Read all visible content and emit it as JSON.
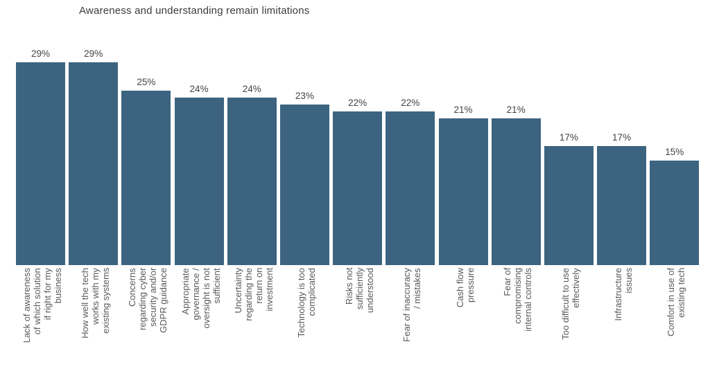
{
  "chart": {
    "title": "Awareness and understanding remain limitations"
  },
  "chart_data": {
    "type": "bar",
    "title": "Awareness and understanding remain limitations",
    "xlabel": "",
    "ylabel": "",
    "value_suffix": "%",
    "grid": false,
    "axes_visible": false,
    "legend": null,
    "bar_color": "#3c6480",
    "title_color": "#3b3b3f",
    "value_label_color": "#424242",
    "category_label_color": "#595959",
    "ylim": [
      0,
      38
    ],
    "categories": [
      "Lack of awareness of which solution if right for my business",
      "How well the tech works with my existing systems",
      "Concerns regarding cyber security and/or GDPR guidance",
      "Appropriate governance / oversight is not sufficient",
      "Uncertainty regarding the return on investment",
      "Technology is too complicated",
      "Risks not sufficiently understood",
      "Fear of inaccuracy / mistakes",
      "Cash flow pressure",
      "Fear of compromising internal controls",
      "Too difficult to use effectively",
      "Infrastructure issues",
      "Comfort in use of existing tech"
    ],
    "category_lines": [
      [
        "Lack of awareness",
        "of which solution",
        "if right for my",
        "business"
      ],
      [
        "How well the tech",
        "works with my",
        "existing systems"
      ],
      [
        "Concerns",
        "regarding cyber",
        "security and/or",
        "GDPR guidance"
      ],
      [
        "Appropriate",
        "governance /",
        "oversight is not",
        "sufficient"
      ],
      [
        "Uncertainty",
        "regarding the",
        "return on",
        "investment"
      ],
      [
        "Technology is too",
        "complicated"
      ],
      [
        "Risks not",
        "sufficiently",
        "understood"
      ],
      [
        "Fear of inaccuracy",
        "/ mistakes"
      ],
      [
        "Cash flow",
        "pressure"
      ],
      [
        "Fear of",
        "compromising",
        "internal controls"
      ],
      [
        "Too difficult to use",
        "effectively"
      ],
      [
        "Infrastructure",
        "issues"
      ],
      [
        "Comfort in use of",
        "existing tech"
      ]
    ],
    "values": [
      29,
      29,
      25,
      24,
      24,
      23,
      22,
      22,
      21,
      21,
      17,
      17,
      15
    ],
    "value_labels": [
      "29%",
      "29%",
      "25%",
      "24%",
      "24%",
      "23%",
      "22%",
      "22%",
      "21%",
      "21%",
      "17%",
      "17%",
      "15%"
    ]
  }
}
